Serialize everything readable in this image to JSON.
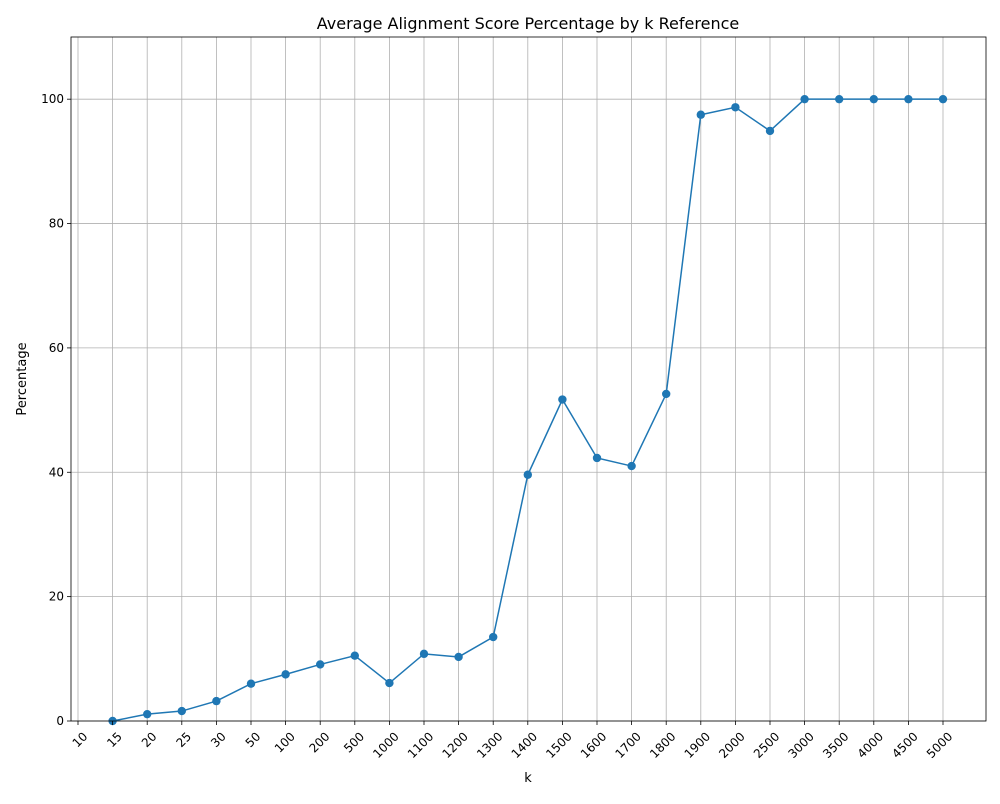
{
  "chart_data": {
    "type": "line",
    "title": "Average Alignment Score Percentage by k Reference",
    "xlabel": "k",
    "ylabel": "Percentage",
    "categories": [
      "10",
      "15",
      "20",
      "25",
      "30",
      "50",
      "100",
      "200",
      "500",
      "1000",
      "1100",
      "1200",
      "1300",
      "1400",
      "1500",
      "1600",
      "1700",
      "1800",
      "1900",
      "2000",
      "2500",
      "3000",
      "3500",
      "4000",
      "4500",
      "5000"
    ],
    "series": [
      {
        "values": [
          null,
          0.0,
          1.1,
          1.6,
          3.2,
          6.0,
          7.5,
          9.1,
          10.5,
          6.1,
          10.8,
          10.3,
          13.5,
          39.6,
          51.7,
          42.3,
          41.0,
          52.6,
          97.5,
          98.7,
          94.9,
          100.0,
          100.0,
          100.0,
          100.0,
          100.0
        ]
      }
    ],
    "yticks": [
      0,
      20,
      40,
      60,
      80,
      100
    ],
    "ylim": [
      0,
      110
    ],
    "grid": true,
    "legend": "none",
    "colors": {
      "line": "#1f77b4",
      "grid": "#b0b0b0"
    }
  }
}
